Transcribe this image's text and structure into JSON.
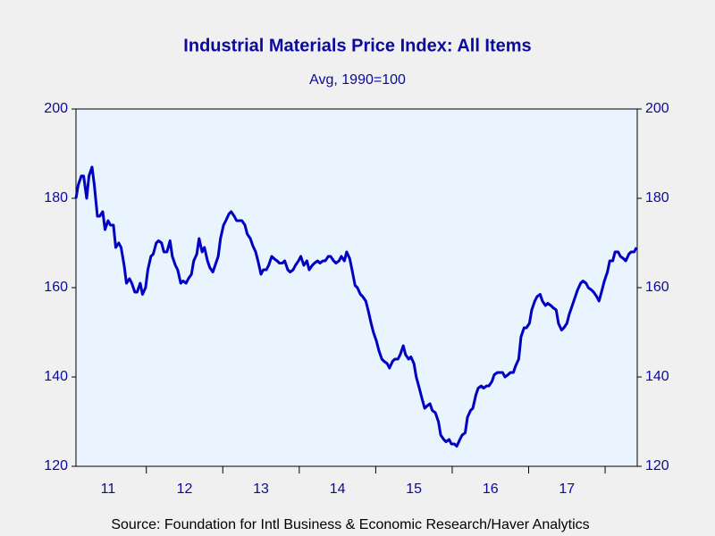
{
  "chart_data": {
    "type": "line",
    "title": "Industrial Materials Price Index: All Items",
    "subtitle": "Avg, 1990=100",
    "source": "Source:  Foundation for Intl Business & Economic Research/Haver Analytics",
    "xlim": [
      2011.08,
      2018.42
    ],
    "xticks": [
      {
        "value": 2011.5,
        "label": "11"
      },
      {
        "value": 2012.5,
        "label": "12"
      },
      {
        "value": 2013.5,
        "label": "13"
      },
      {
        "value": 2014.5,
        "label": "14"
      },
      {
        "value": 2015.5,
        "label": "15"
      },
      {
        "value": 2016.5,
        "label": "16"
      },
      {
        "value": 2017.5,
        "label": "17"
      }
    ],
    "ylim": [
      120,
      200
    ],
    "yticks": [
      120,
      140,
      160,
      180,
      200
    ],
    "y2lim": [
      120,
      200
    ],
    "y2ticks": [
      120,
      140,
      160,
      180,
      200
    ],
    "grid": false,
    "x": [
      2011.08,
      2011.11,
      2011.15,
      2011.18,
      2011.22,
      2011.25,
      2011.29,
      2011.32,
      2011.36,
      2011.39,
      2011.43,
      2011.46,
      2011.5,
      2011.53,
      2011.57,
      2011.6,
      2011.64,
      2011.67,
      2011.71,
      2011.74,
      2011.78,
      2011.81,
      2011.85,
      2011.88,
      2011.92,
      2011.95,
      2011.99,
      2012.02,
      2012.06,
      2012.09,
      2012.13,
      2012.16,
      2012.2,
      2012.23,
      2012.27,
      2012.31,
      2012.34,
      2012.38,
      2012.41,
      2012.45,
      2012.48,
      2012.52,
      2012.55,
      2012.59,
      2012.62,
      2012.66,
      2012.69,
      2012.73,
      2012.76,
      2012.8,
      2012.83,
      2012.87,
      2012.9,
      2012.94,
      2012.97,
      2013.01,
      2013.04,
      2013.08,
      2013.11,
      2013.15,
      2013.18,
      2013.22,
      2013.25,
      2013.29,
      2013.32,
      2013.36,
      2013.39,
      2013.43,
      2013.46,
      2013.5,
      2013.53,
      2013.57,
      2013.6,
      2013.64,
      2013.67,
      2013.71,
      2013.74,
      2013.78,
      2013.81,
      2013.85,
      2013.88,
      2013.92,
      2013.95,
      2013.99,
      2014.02,
      2014.06,
      2014.1,
      2014.13,
      2014.17,
      2014.2,
      2014.24,
      2014.27,
      2014.31,
      2014.34,
      2014.38,
      2014.41,
      2014.45,
      2014.48,
      2014.52,
      2014.55,
      2014.59,
      2014.62,
      2014.66,
      2014.69,
      2014.73,
      2014.76,
      2014.8,
      2014.83,
      2014.87,
      2014.9,
      2014.94,
      2014.97,
      2015.01,
      2015.04,
      2015.08,
      2015.11,
      2015.15,
      2015.18,
      2015.22,
      2015.25,
      2015.29,
      2015.32,
      2015.36,
      2015.39,
      2015.43,
      2015.46,
      2015.5,
      2015.53,
      2015.57,
      2015.6,
      2015.64,
      2015.67,
      2015.71,
      2015.74,
      2015.78,
      2015.82,
      2015.85,
      2015.89,
      2015.92,
      2015.96,
      2015.99,
      2016.03,
      2016.06,
      2016.1,
      2016.13,
      2016.17,
      2016.2,
      2016.24,
      2016.27,
      2016.31,
      2016.34,
      2016.38,
      2016.41,
      2016.45,
      2016.48,
      2016.52,
      2016.55,
      2016.59,
      2016.62,
      2016.66,
      2016.69,
      2016.73,
      2016.76,
      2016.8,
      2016.83,
      2016.87,
      2016.9,
      2016.94,
      2016.97,
      2017.01,
      2017.04,
      2017.08,
      2017.11,
      2017.15,
      2017.18,
      2017.22,
      2017.25,
      2017.29,
      2017.32,
      2017.36,
      2017.39,
      2017.43,
      2017.46,
      2017.5,
      2017.53,
      2017.57,
      2017.61,
      2017.64,
      2017.68,
      2017.71,
      2017.75,
      2017.78,
      2017.82,
      2017.85,
      2017.89,
      2017.92,
      2017.96,
      2017.99,
      2018.03,
      2018.06,
      2018.1,
      2018.13,
      2018.17,
      2018.2,
      2018.24,
      2018.27,
      2018.31,
      2018.34,
      2018.38,
      2018.41
    ],
    "series": [
      {
        "color": "#0000c0",
        "values": [
          180,
          183,
          185,
          185,
          180,
          185,
          187,
          183,
          176,
          176,
          177,
          173,
          175,
          174,
          174,
          169,
          170,
          169,
          165,
          161,
          162,
          161,
          159,
          159,
          161,
          158.5,
          160,
          164,
          167,
          167.5,
          170,
          170.5,
          170,
          168,
          168,
          170.5,
          167,
          165,
          164,
          161,
          161.5,
          161,
          162,
          163,
          166,
          167.5,
          171,
          168,
          169,
          166,
          164.5,
          163.5,
          165,
          167,
          171,
          174,
          175,
          176.5,
          177,
          176,
          175,
          175,
          175,
          174,
          172,
          171,
          169.5,
          168,
          166,
          163,
          164,
          164,
          165,
          167,
          166.5,
          166,
          165.5,
          165.5,
          166,
          164,
          163.5,
          164,
          165,
          166,
          167,
          165,
          166,
          164,
          165,
          165.5,
          166,
          165.5,
          166,
          166,
          167,
          167,
          166,
          165.5,
          166,
          167,
          166,
          168,
          166.5,
          164,
          160.5,
          160,
          158.5,
          158,
          157,
          155,
          152,
          150,
          148,
          146,
          144,
          143.5,
          143,
          142,
          143.5,
          144,
          144,
          145,
          147,
          145,
          144,
          144.5,
          143,
          140,
          137.5,
          135.5,
          133,
          133.5,
          134,
          132.5,
          132,
          130,
          127,
          126,
          125.5,
          126,
          125,
          125,
          124.5,
          126,
          127,
          127.5,
          131,
          132.5,
          133,
          136,
          137.5,
          138,
          137.5,
          138,
          138,
          139,
          140.5,
          141,
          141,
          141,
          140,
          140.5,
          141,
          141,
          142.5,
          144,
          149,
          151,
          151,
          152,
          155,
          157,
          158,
          158.5,
          157,
          156,
          156.5,
          156,
          155.5,
          155,
          152,
          150.5,
          151,
          152,
          154,
          156,
          158,
          159.5,
          161,
          161.5,
          161,
          160,
          159.5,
          159,
          158,
          157,
          159.5,
          161.5,
          163.5,
          166,
          166,
          168,
          168,
          167,
          166.5,
          166,
          167.5,
          168,
          168,
          169
        ]
      }
    ]
  }
}
